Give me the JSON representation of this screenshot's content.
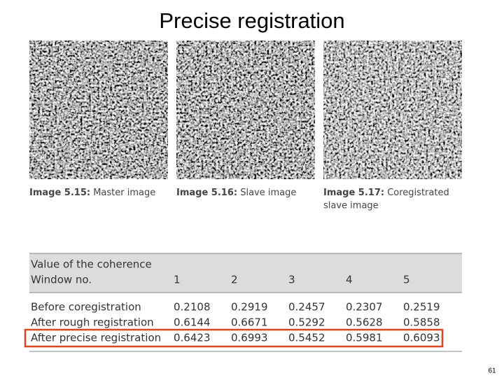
{
  "header": {
    "title": "Precise registration"
  },
  "figures": [
    {
      "label": "Image 5.15:",
      "text": "Master image"
    },
    {
      "label": "Image 5.16:",
      "text": "Slave image"
    },
    {
      "label": "Image 5.17:",
      "text": "Coregistrated slave image"
    }
  ],
  "table": {
    "header": {
      "line1": "Value of the coherence",
      "line2": "Window no.",
      "columns": [
        1,
        2,
        3,
        4,
        5
      ]
    },
    "rows": [
      [
        "Before coregistration",
        0.2108,
        0.2919,
        0.2457,
        0.2307,
        0.2519
      ],
      [
        "After rough registration",
        0.6144,
        0.6671,
        0.5292,
        0.5628,
        0.5858
      ],
      [
        "After precise registration",
        0.6423,
        0.6993,
        0.5452,
        0.5981,
        0.6093
      ]
    ]
  },
  "footer": {
    "page_number": 61
  }
}
